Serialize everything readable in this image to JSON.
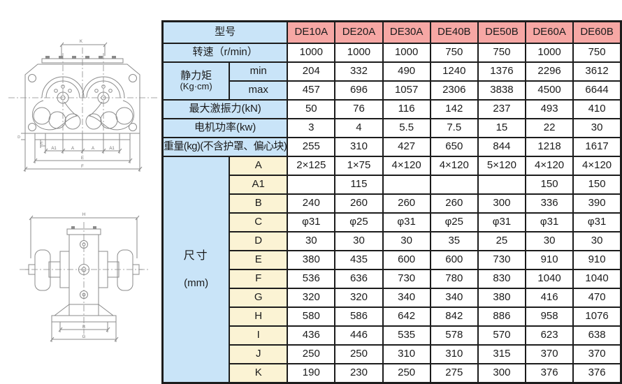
{
  "colors": {
    "model_header_bg": "#f6a7a4",
    "label_bg": "#c9e4f8",
    "dimension_letter_bg": "#fbf3d4",
    "grid_border": "#1c1c1c"
  },
  "table": {
    "model_header_label": "型号",
    "models": [
      "DE10A",
      "DE20A",
      "DE30A",
      "DE40B",
      "DE50B",
      "DE60A",
      "DE60B"
    ],
    "speed": {
      "label": "转速（r/min）",
      "values": [
        "1000",
        "1000",
        "1000",
        "750",
        "750",
        "1000",
        "750"
      ]
    },
    "static_moment": {
      "label_line1": "静力矩",
      "label_line2": "(Kg·cm)",
      "min_label": "min",
      "max_label": "max",
      "min_values": [
        "204",
        "332",
        "490",
        "1240",
        "1376",
        "2296",
        "3612"
      ],
      "max_values": [
        "457",
        "696",
        "1057",
        "2306",
        "3838",
        "4500",
        "6644"
      ]
    },
    "max_force": {
      "label": "最大激振力(kN)",
      "values": [
        "50",
        "76",
        "116",
        "142",
        "237",
        "493",
        "410"
      ]
    },
    "motor_power": {
      "label": "电机功率(kw)",
      "values": [
        "3",
        "4",
        "5.5",
        "7.5",
        "15",
        "22",
        "30"
      ]
    },
    "weight": {
      "label": "重量(kg)(不含护罩、偏心块)",
      "values": [
        "255",
        "310",
        "427",
        "650",
        "844",
        "1218",
        "1617"
      ]
    },
    "dimensions": {
      "label_line1": "尺寸",
      "label_line2": "(mm)",
      "rows": [
        {
          "name": "A",
          "values": [
            "2×125",
            "1×75",
            "4×120",
            "4×120",
            "5×120",
            "4×120",
            "4×120"
          ]
        },
        {
          "name": "A1",
          "values": [
            "",
            "115",
            "",
            "",
            "",
            "150",
            "150"
          ]
        },
        {
          "name": "B",
          "values": [
            "240",
            "260",
            "260",
            "260",
            "300",
            "336",
            "390"
          ]
        },
        {
          "name": "C",
          "values": [
            "φ31",
            "φ25",
            "φ31",
            "φ25",
            "φ31",
            "φ31",
            "φ31"
          ]
        },
        {
          "name": "D",
          "values": [
            "30",
            "30",
            "30",
            "35",
            "25",
            "30",
            "30"
          ]
        },
        {
          "name": "E",
          "values": [
            "380",
            "435",
            "600",
            "600",
            "730",
            "910",
            "910"
          ]
        },
        {
          "name": "F",
          "values": [
            "536",
            "636",
            "730",
            "780",
            "830",
            "1040",
            "1040"
          ]
        },
        {
          "name": "G",
          "values": [
            "320",
            "320",
            "340",
            "340",
            "380",
            "416",
            "470"
          ]
        },
        {
          "name": "H",
          "values": [
            "580",
            "586",
            "642",
            "842",
            "886",
            "958",
            "1076"
          ]
        },
        {
          "name": "I",
          "values": [
            "436",
            "446",
            "535",
            "578",
            "570",
            "623",
            "638"
          ]
        },
        {
          "name": "J",
          "values": [
            "250",
            "250",
            "310",
            "310",
            "315",
            "370",
            "370"
          ]
        },
        {
          "name": "K",
          "values": [
            "190",
            "230",
            "250",
            "275",
            "300",
            "376",
            "376"
          ]
        }
      ]
    }
  },
  "drawings": {
    "front_view": {
      "top_label": "K",
      "bottom_labels": [
        "A1",
        "A",
        "A",
        "A1"
      ],
      "e_label": "E",
      "f_label": "F",
      "c_label": "C",
      "d_label": "D"
    },
    "side_view": {
      "top_label": "H",
      "b_label": "B",
      "g_label": "G"
    }
  }
}
